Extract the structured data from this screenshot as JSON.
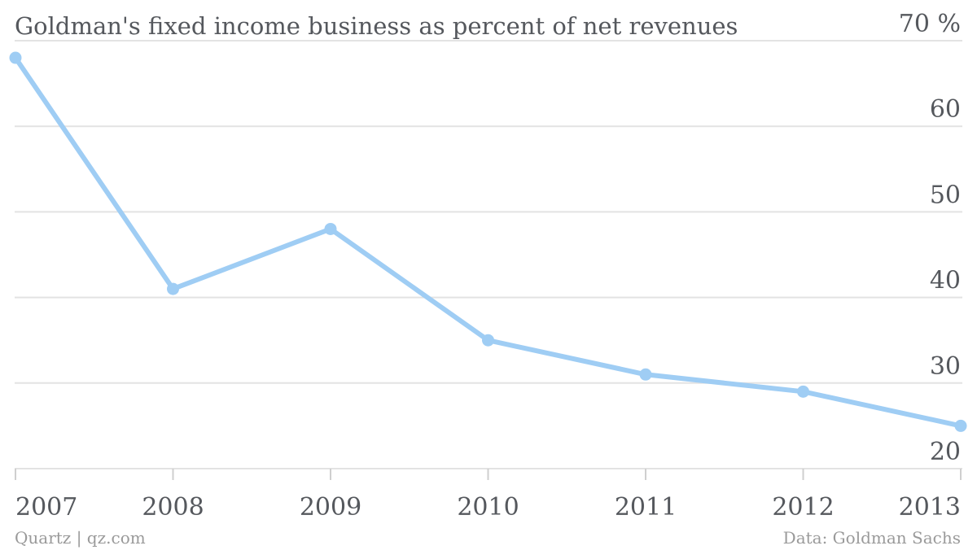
{
  "chart_data": {
    "type": "line",
    "title": "Goldman's fixed income business as percent of net revenues",
    "x": [
      "2007",
      "2008",
      "2009",
      "2010",
      "2011",
      "2012",
      "2013"
    ],
    "series": [
      {
        "values": [
          68,
          41,
          48,
          35,
          31,
          29,
          25
        ]
      }
    ],
    "ylim": [
      20,
      70
    ],
    "yticks": [
      20,
      30,
      40,
      50,
      60,
      70
    ],
    "ytick_labels": [
      "20",
      "30",
      "40",
      "50",
      "60",
      "70 %"
    ],
    "grid": true,
    "line_color": "#9fcdf4"
  },
  "footer": {
    "source_left": "Quartz | qz.com",
    "source_right": "Data: Goldman Sachs"
  }
}
